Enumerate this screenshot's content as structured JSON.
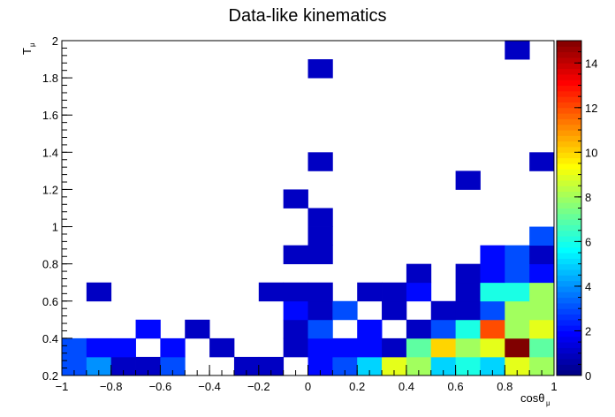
{
  "chart_data": {
    "type": "heatmap",
    "title": "Data-like kinematics",
    "xlabel": "cosθ",
    "xlabel_sub": "μ",
    "ylabel": "T",
    "ylabel_sub": "μ",
    "xlim": [
      -1,
      1
    ],
    "ylim": [
      0.2,
      2
    ],
    "x_bins": 20,
    "y_bins": 18,
    "x_ticks": [
      "−1",
      "−0.8",
      "−0.6",
      "−0.4",
      "−0.2",
      "0",
      "0.2",
      "0.4",
      "0.6",
      "0.8",
      "1"
    ],
    "y_ticks": [
      "0.2",
      "0.4",
      "0.6",
      "0.8",
      "1",
      "1.2",
      "1.4",
      "1.6",
      "1.8",
      "2"
    ],
    "colorbar_range": [
      0,
      15
    ],
    "colorbar_ticks": [
      "0",
      "2",
      "4",
      "6",
      "8",
      "10",
      "12",
      "14"
    ],
    "grid": false,
    "colormap": "jet",
    "cells": [
      {
        "x": -0.95,
        "y": 0.25,
        "z": 3
      },
      {
        "x": -0.85,
        "y": 0.25,
        "z": 4
      },
      {
        "x": -0.75,
        "y": 0.25,
        "z": 1
      },
      {
        "x": -0.65,
        "y": 0.25,
        "z": 1
      },
      {
        "x": -0.55,
        "y": 0.25,
        "z": 3
      },
      {
        "x": -0.25,
        "y": 0.25,
        "z": 1
      },
      {
        "x": -0.15,
        "y": 0.25,
        "z": 1
      },
      {
        "x": 0.05,
        "y": 0.25,
        "z": 2
      },
      {
        "x": 0.15,
        "y": 0.25,
        "z": 3
      },
      {
        "x": 0.25,
        "y": 0.25,
        "z": 5
      },
      {
        "x": 0.35,
        "y": 0.25,
        "z": 9
      },
      {
        "x": 0.45,
        "y": 0.25,
        "z": 8
      },
      {
        "x": 0.55,
        "y": 0.25,
        "z": 5
      },
      {
        "x": 0.65,
        "y": 0.25,
        "z": 6
      },
      {
        "x": 0.75,
        "y": 0.25,
        "z": 5
      },
      {
        "x": 0.85,
        "y": 0.25,
        "z": 9
      },
      {
        "x": 0.95,
        "y": 0.25,
        "z": 8
      },
      {
        "x": -0.95,
        "y": 0.35,
        "z": 3
      },
      {
        "x": -0.85,
        "y": 0.35,
        "z": 2
      },
      {
        "x": -0.75,
        "y": 0.35,
        "z": 2
      },
      {
        "x": -0.55,
        "y": 0.35,
        "z": 2
      },
      {
        "x": -0.35,
        "y": 0.35,
        "z": 1
      },
      {
        "x": -0.05,
        "y": 0.35,
        "z": 1
      },
      {
        "x": 0.05,
        "y": 0.35,
        "z": 2
      },
      {
        "x": 0.15,
        "y": 0.35,
        "z": 2
      },
      {
        "x": 0.25,
        "y": 0.35,
        "z": 2
      },
      {
        "x": 0.35,
        "y": 0.35,
        "z": 1
      },
      {
        "x": 0.45,
        "y": 0.35,
        "z": 7
      },
      {
        "x": 0.55,
        "y": 0.35,
        "z": 10
      },
      {
        "x": 0.65,
        "y": 0.35,
        "z": 8
      },
      {
        "x": 0.75,
        "y": 0.35,
        "z": 9
      },
      {
        "x": 0.85,
        "y": 0.35,
        "z": 15
      },
      {
        "x": 0.95,
        "y": 0.35,
        "z": 7
      },
      {
        "x": -0.65,
        "y": 0.45,
        "z": 2
      },
      {
        "x": -0.45,
        "y": 0.45,
        "z": 1
      },
      {
        "x": -0.05,
        "y": 0.45,
        "z": 1
      },
      {
        "x": 0.05,
        "y": 0.45,
        "z": 3
      },
      {
        "x": 0.25,
        "y": 0.45,
        "z": 2
      },
      {
        "x": 0.45,
        "y": 0.45,
        "z": 1
      },
      {
        "x": 0.55,
        "y": 0.45,
        "z": 3
      },
      {
        "x": 0.65,
        "y": 0.45,
        "z": 6
      },
      {
        "x": 0.75,
        "y": 0.45,
        "z": 12
      },
      {
        "x": 0.85,
        "y": 0.45,
        "z": 8
      },
      {
        "x": 0.95,
        "y": 0.45,
        "z": 9
      },
      {
        "x": -0.05,
        "y": 0.55,
        "z": 2
      },
      {
        "x": 0.05,
        "y": 0.55,
        "z": 1
      },
      {
        "x": 0.15,
        "y": 0.55,
        "z": 3
      },
      {
        "x": 0.35,
        "y": 0.55,
        "z": 1
      },
      {
        "x": 0.55,
        "y": 0.55,
        "z": 1
      },
      {
        "x": 0.65,
        "y": 0.55,
        "z": 1
      },
      {
        "x": 0.75,
        "y": 0.55,
        "z": 3
      },
      {
        "x": 0.85,
        "y": 0.55,
        "z": 8
      },
      {
        "x": 0.95,
        "y": 0.55,
        "z": 8
      },
      {
        "x": -0.85,
        "y": 0.65,
        "z": 1
      },
      {
        "x": -0.15,
        "y": 0.65,
        "z": 1
      },
      {
        "x": -0.05,
        "y": 0.65,
        "z": 1
      },
      {
        "x": 0.05,
        "y": 0.65,
        "z": 1
      },
      {
        "x": 0.25,
        "y": 0.65,
        "z": 1
      },
      {
        "x": 0.35,
        "y": 0.65,
        "z": 1
      },
      {
        "x": 0.45,
        "y": 0.65,
        "z": 2
      },
      {
        "x": 0.65,
        "y": 0.65,
        "z": 1
      },
      {
        "x": 0.75,
        "y": 0.65,
        "z": 6
      },
      {
        "x": 0.85,
        "y": 0.65,
        "z": 6
      },
      {
        "x": 0.95,
        "y": 0.65,
        "z": 8
      },
      {
        "x": 0.45,
        "y": 0.75,
        "z": 1
      },
      {
        "x": 0.65,
        "y": 0.75,
        "z": 1
      },
      {
        "x": 0.75,
        "y": 0.75,
        "z": 2
      },
      {
        "x": 0.85,
        "y": 0.75,
        "z": 3
      },
      {
        "x": 0.95,
        "y": 0.75,
        "z": 2
      },
      {
        "x": -0.05,
        "y": 0.85,
        "z": 1
      },
      {
        "x": 0.05,
        "y": 0.85,
        "z": 1
      },
      {
        "x": 0.75,
        "y": 0.85,
        "z": 2
      },
      {
        "x": 0.85,
        "y": 0.85,
        "z": 3
      },
      {
        "x": 0.95,
        "y": 0.85,
        "z": 1
      },
      {
        "x": 0.05,
        "y": 0.95,
        "z": 1
      },
      {
        "x": 0.95,
        "y": 0.95,
        "z": 3
      },
      {
        "x": 0.05,
        "y": 1.05,
        "z": 1
      },
      {
        "x": -0.05,
        "y": 1.15,
        "z": 1
      },
      {
        "x": 0.65,
        "y": 1.25,
        "z": 1
      },
      {
        "x": 0.05,
        "y": 1.35,
        "z": 1
      },
      {
        "x": 0.95,
        "y": 1.35,
        "z": 1
      },
      {
        "x": 0.05,
        "y": 1.85,
        "z": 1
      },
      {
        "x": 0.85,
        "y": 1.95,
        "z": 1
      }
    ]
  }
}
